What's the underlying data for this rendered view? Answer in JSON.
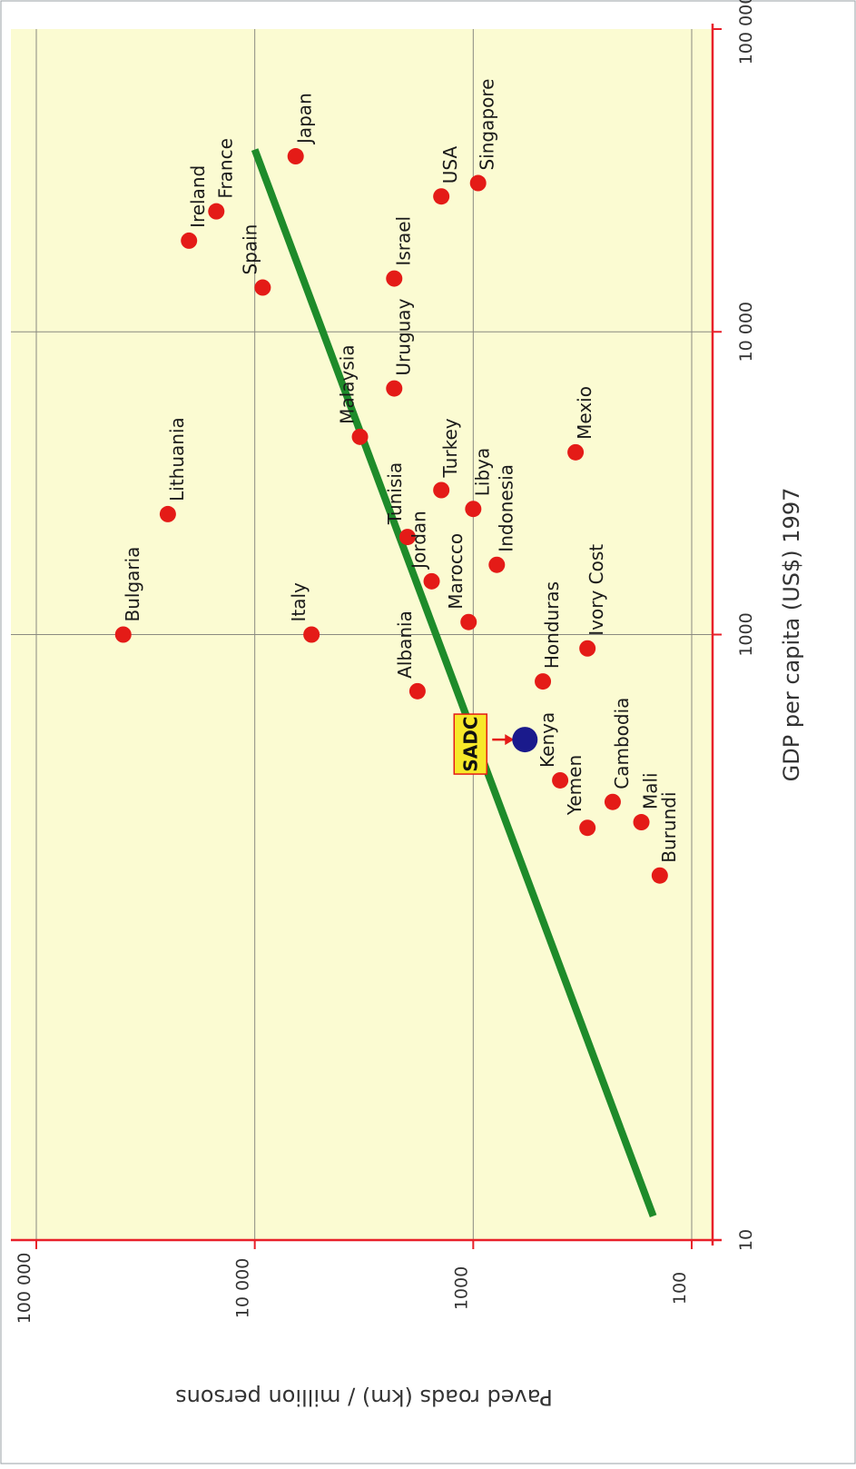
{
  "chart_data": {
    "type": "scatter",
    "title": "",
    "xlabel": "GDP per capita (US$) 1997",
    "ylabel": "Paved roads (km) / million persons",
    "x_scale": "log",
    "y_scale": "log",
    "xlim": [
      10,
      100000
    ],
    "ylim": [
      100,
      100000
    ],
    "x_ticks": [
      {
        "value": 10,
        "label": "10"
      },
      {
        "value": 1000,
        "label": "1000"
      },
      {
        "value": 10000,
        "label": "10 000"
      },
      {
        "value": 100000,
        "label": "100 000"
      }
    ],
    "y_ticks": [
      {
        "value": 100000,
        "label": "100 000"
      },
      {
        "value": 10000,
        "label": "10 000"
      },
      {
        "value": 1000,
        "label": "1000"
      },
      {
        "value": 100,
        "label": "100"
      }
    ],
    "grid": true,
    "point_color": "#e41b17",
    "highlight_color": "#1a1a8c",
    "trend_color": "#1e8b2a",
    "background_color": "#fbfbd2",
    "axis_color": "#e8202a",
    "points": [
      {
        "label": "Bulgaria",
        "x": 1000,
        "y": 40000
      },
      {
        "label": "Lithuania",
        "x": 2500,
        "y": 25000
      },
      {
        "label": "Ireland",
        "x": 20000,
        "y": 20000
      },
      {
        "label": "France",
        "x": 25000,
        "y": 15000
      },
      {
        "label": "Japan",
        "x": 38000,
        "y": 6500
      },
      {
        "label": "Spain",
        "x": 14000,
        "y": 9200
      },
      {
        "label": "Italy",
        "x": 1000,
        "y": 5500
      },
      {
        "label": "Malaysia",
        "x": 4500,
        "y": 3300
      },
      {
        "label": "Uruguay",
        "x": 6500,
        "y": 2300
      },
      {
        "label": "Israel",
        "x": 15000,
        "y": 2300
      },
      {
        "label": "USA",
        "x": 28000,
        "y": 1400
      },
      {
        "label": "Singapore",
        "x": 31000,
        "y": 950
      },
      {
        "label": "Tunisia",
        "x": 2100,
        "y": 2000
      },
      {
        "label": "Jordan",
        "x": 1500,
        "y": 1550
      },
      {
        "label": "Turkey",
        "x": 3000,
        "y": 1400
      },
      {
        "label": "Libya",
        "x": 2600,
        "y": 1000
      },
      {
        "label": "Marocco",
        "x": 1100,
        "y": 1050
      },
      {
        "label": "Indonesia",
        "x": 1700,
        "y": 780
      },
      {
        "label": "Albania",
        "x": 650,
        "y": 1800
      },
      {
        "label": "Honduras",
        "x": 700,
        "y": 480
      },
      {
        "label": "Ivory Cost",
        "x": 900,
        "y": 300
      },
      {
        "label": "Mexio",
        "x": 4000,
        "y": 340
      },
      {
        "label": "Kenya",
        "x": 330,
        "y": 400
      },
      {
        "label": "Cambodia",
        "x": 280,
        "y": 230
      },
      {
        "label": "Mali",
        "x": 240,
        "y": 170
      },
      {
        "label": "Yemen",
        "x": 230,
        "y": 300
      },
      {
        "label": "Burundi",
        "x": 160,
        "y": 140
      }
    ],
    "highlight": {
      "label": "SADC",
      "x": 450,
      "y": 580
    },
    "trend_line": {
      "x": [
        12,
        40000
      ],
      "y": [
        150,
        10000
      ]
    }
  }
}
